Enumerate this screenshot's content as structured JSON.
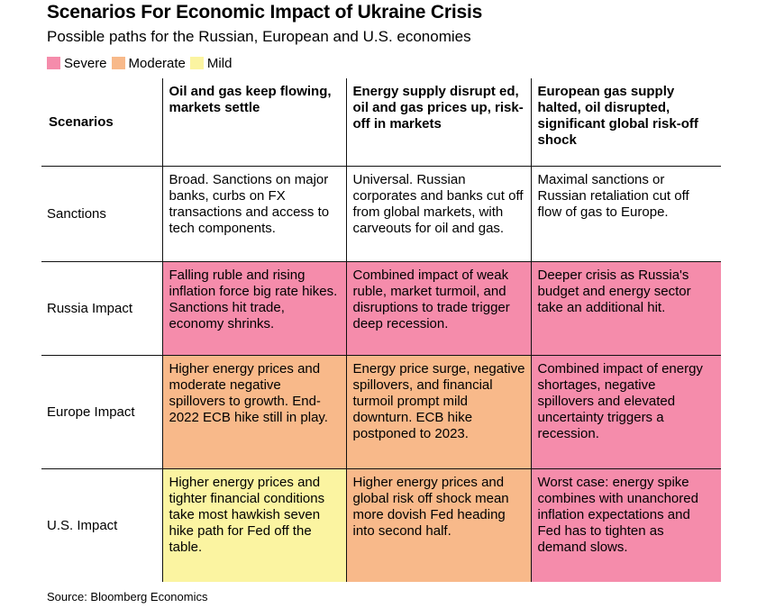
{
  "colors": {
    "severe": "#f58cab",
    "moderate": "#f8b98a",
    "mild": "#fbf4a1",
    "none": "#ffffff"
  },
  "chart_data": {
    "type": "table",
    "title": "Scenarios For Economic Impact of Ukraine Crisis",
    "subtitle": "Possible paths for the Russian, European and U.S. economies",
    "legend": [
      {
        "label": "Severe",
        "level": "severe"
      },
      {
        "label": "Moderate",
        "level": "moderate"
      },
      {
        "label": "Mild",
        "level": "mild"
      }
    ],
    "corner_header": "Scenarios",
    "columns": [
      "Oil and gas keep flowing, markets settle",
      "Energy supply disrupt ed, oil and gas prices up, risk-off in markets",
      "European gas supply halted, oil disrupted, significant global risk-off shock"
    ],
    "rows": [
      {
        "label": "Sanctions",
        "cells": [
          {
            "text": "Broad. Sanctions on major banks, curbs on FX transactions and access to tech components.",
            "level": "none"
          },
          {
            "text": "Universal. Russian corporates and banks cut off from global markets, with carveouts for oil and gas.",
            "level": "none"
          },
          {
            "text": "Maximal sanctions or Russian retaliation cut off flow of gas to Europe.",
            "level": "none"
          }
        ]
      },
      {
        "label": "Russia Impact",
        "cells": [
          {
            "text": "Falling ruble and rising inflation force big rate hikes. Sanctions hit trade, economy shrinks.",
            "level": "severe"
          },
          {
            "text": "Combined impact of weak ruble, market turmoil, and disruptions to trade trigger deep recession.",
            "level": "severe"
          },
          {
            "text": "Deeper crisis as Russia's budget and energy sector take an additional hit.",
            "level": "severe"
          }
        ]
      },
      {
        "label": "Europe Impact",
        "cells": [
          {
            "text": "Higher energy prices and moderate negative spillovers to growth. End-2022 ECB hike still in play.",
            "level": "moderate"
          },
          {
            "text": "Energy price surge, negative spillovers, and financial turmoil prompt mild downturn. ECB hike postponed to 2023.",
            "level": "moderate"
          },
          {
            "text": "Combined impact of energy shortages, negative spillovers and elevated uncertainty triggers a recession.",
            "level": "severe"
          }
        ]
      },
      {
        "label": "U.S. Impact",
        "cells": [
          {
            "text": "Higher energy prices and tighter financial conditions take most hawkish seven hike path for Fed off the table.",
            "level": "mild"
          },
          {
            "text": "Higher energy prices and global risk off shock mean more dovish Fed heading into second half.",
            "level": "moderate"
          },
          {
            "text": "Worst case: energy spike combines with unanchored inflation expectations and Fed has to tighten as demand slows.",
            "level": "severe"
          }
        ]
      }
    ],
    "source": "Source: Bloomberg Economics"
  }
}
